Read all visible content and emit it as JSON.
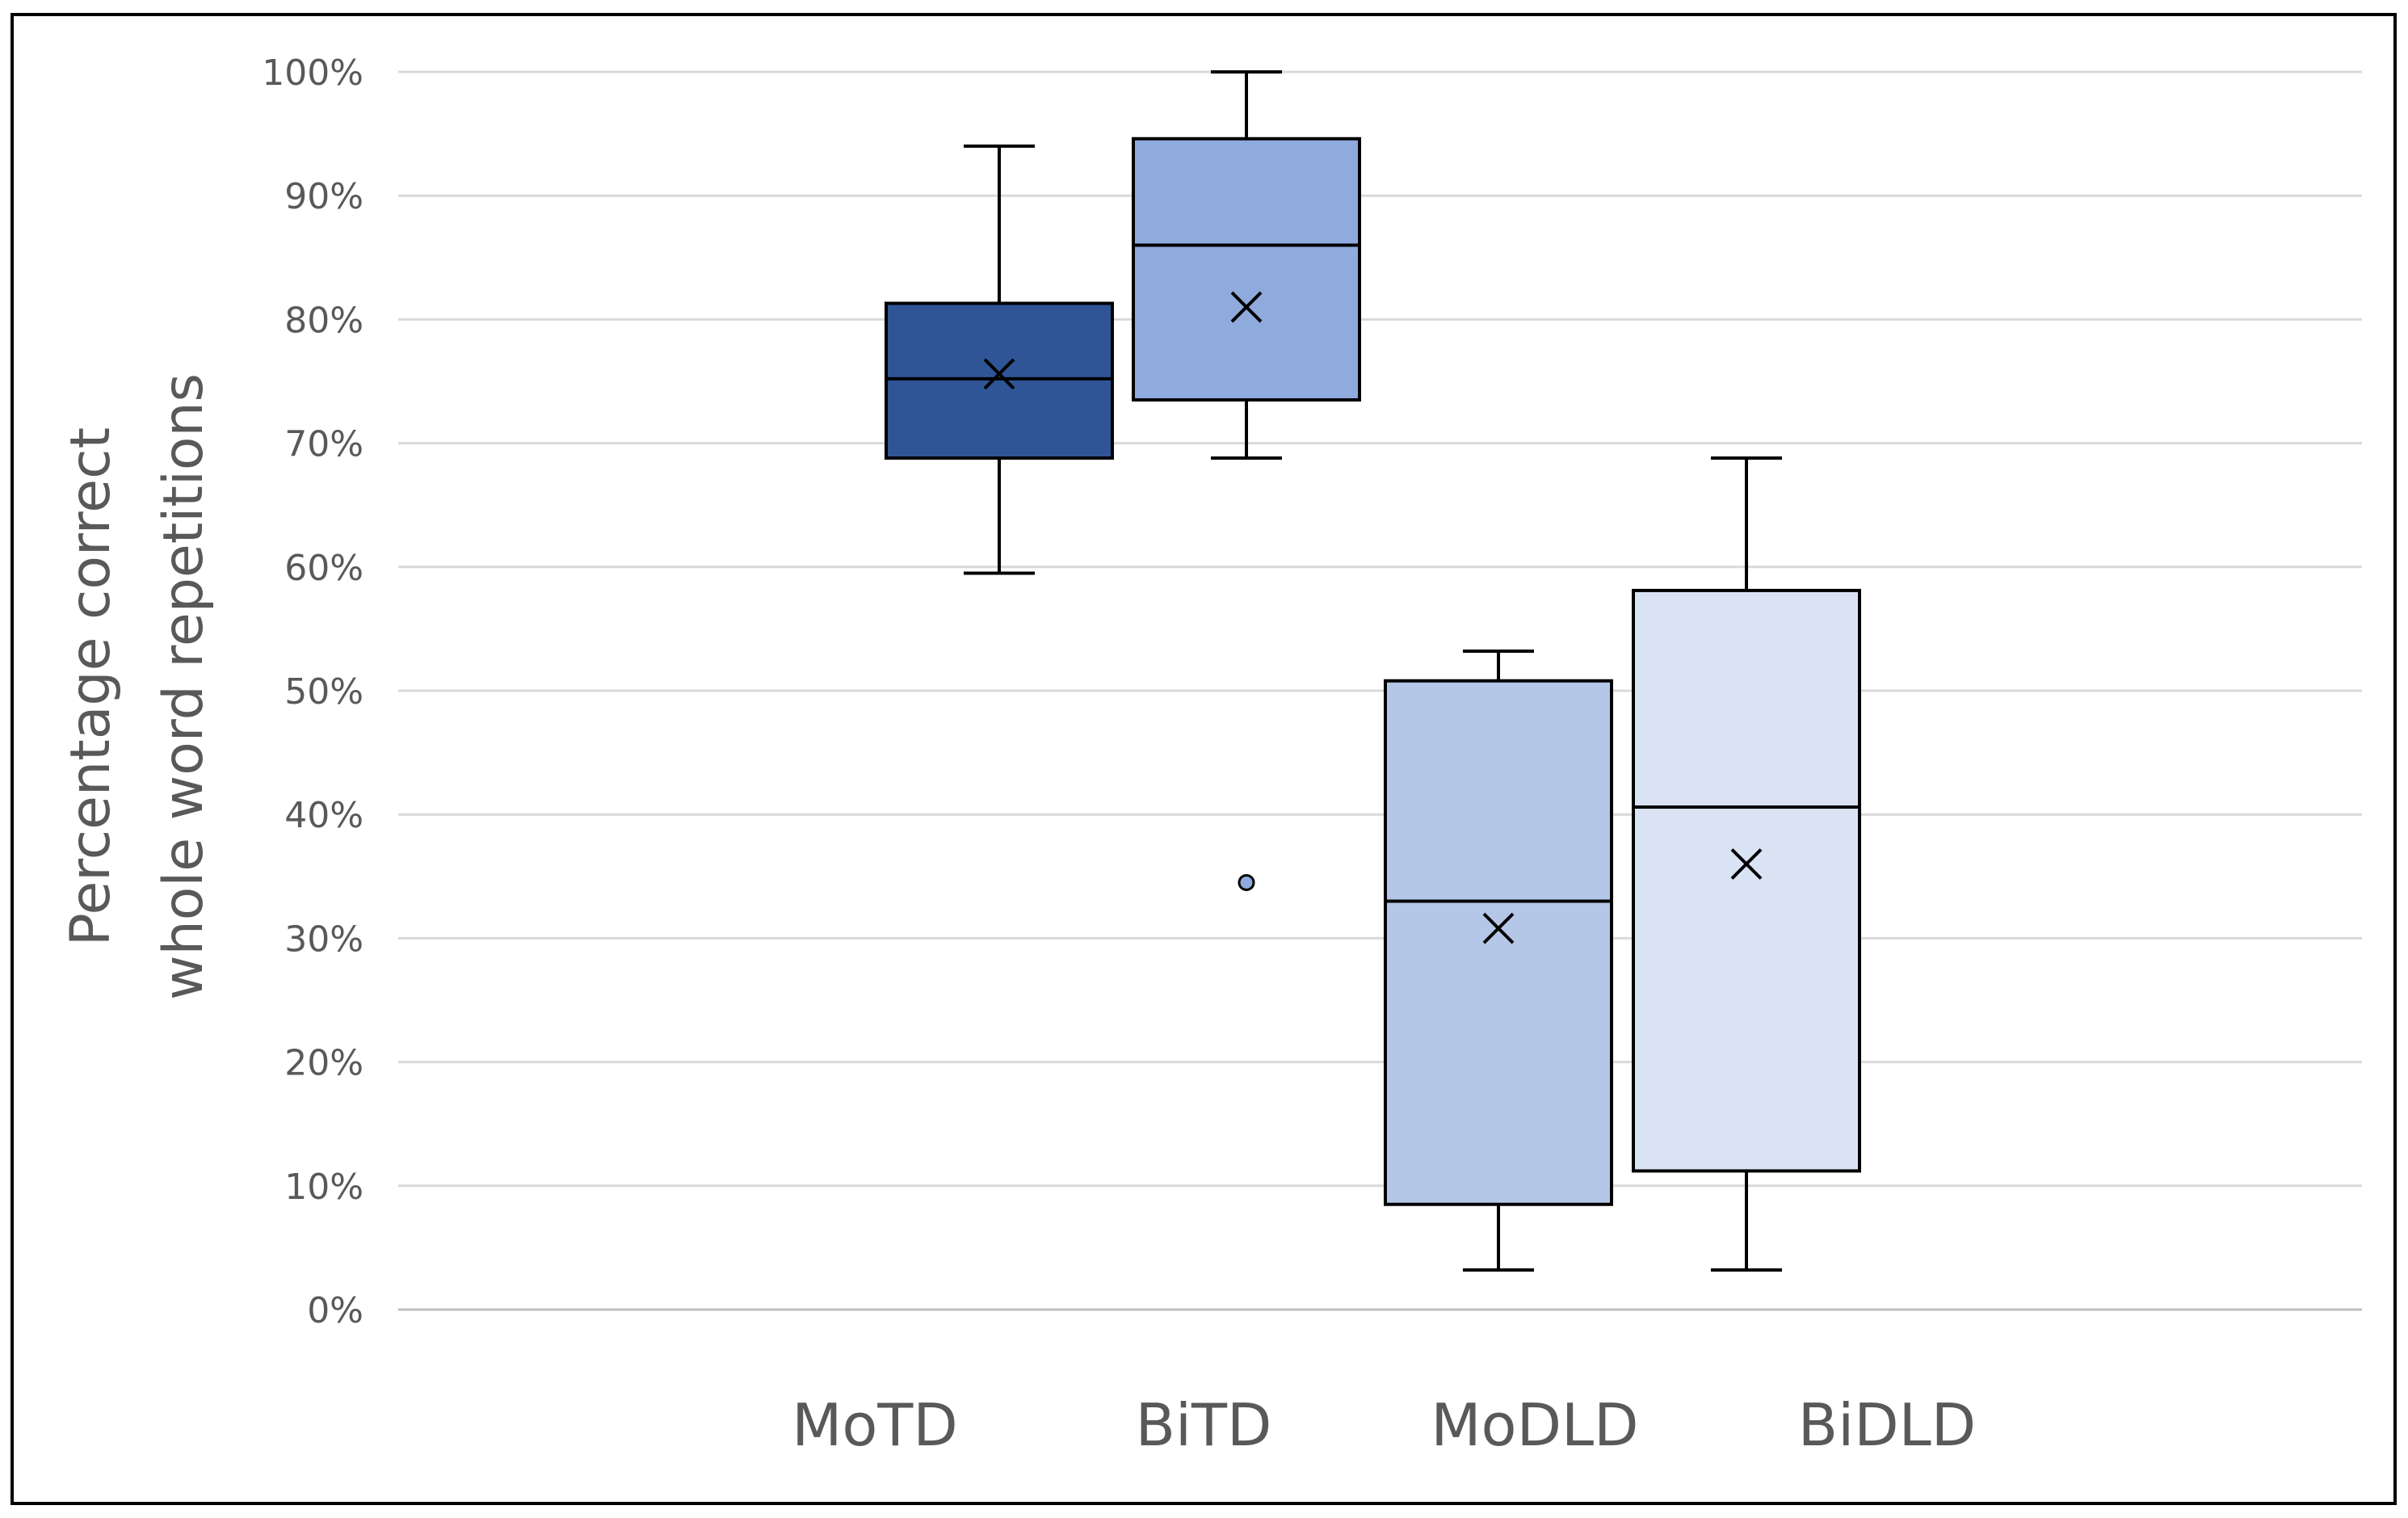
{
  "chart_data": {
    "type": "boxplot",
    "title": "",
    "ylabel_lines": [
      "Percentage correct",
      "whole word repetitions"
    ],
    "xlabel": "",
    "ylim": [
      0,
      100
    ],
    "y_ticks": [
      0,
      10,
      20,
      30,
      40,
      50,
      60,
      70,
      80,
      90,
      100
    ],
    "y_tick_labels": [
      "0%",
      "10%",
      "20%",
      "30%",
      "40%",
      "50%",
      "60%",
      "70%",
      "80%",
      "90%",
      "100%"
    ],
    "grid": true,
    "categories": [
      "MoTD",
      "BiTD",
      "MoDLD",
      "BiDLD"
    ],
    "boxes": [
      {
        "category": "MoTD",
        "min": 59.5,
        "q1": 68.8,
        "median": 75.2,
        "q3": 81.3,
        "max": 94,
        "mean": 75.6,
        "outliers": [],
        "color": "#2f5597"
      },
      {
        "category": "BiTD",
        "min": 68.8,
        "q1": 73.5,
        "median": 86,
        "q3": 94.6,
        "max": 100,
        "mean": 81,
        "outliers": [
          34.5
        ],
        "color": "#8faadc"
      },
      {
        "category": "MoDLD",
        "min": 3.2,
        "q1": 8.5,
        "median": 33,
        "q3": 50.8,
        "max": 53.2,
        "mean": 30.8,
        "outliers": [],
        "color": "#b4c7e7"
      },
      {
        "category": "BiDLD",
        "min": 3.2,
        "q1": 11.2,
        "median": 40.6,
        "q3": 58.1,
        "max": 68.8,
        "mean": 36,
        "outliers": [],
        "color": "#dae3f3"
      }
    ],
    "colors": {
      "grid": "#d9d9d9",
      "axis": "#bfbfbf",
      "tick_text": "#595959",
      "label_text": "#595959",
      "stroke": "#000000",
      "frame": "#000000"
    }
  }
}
